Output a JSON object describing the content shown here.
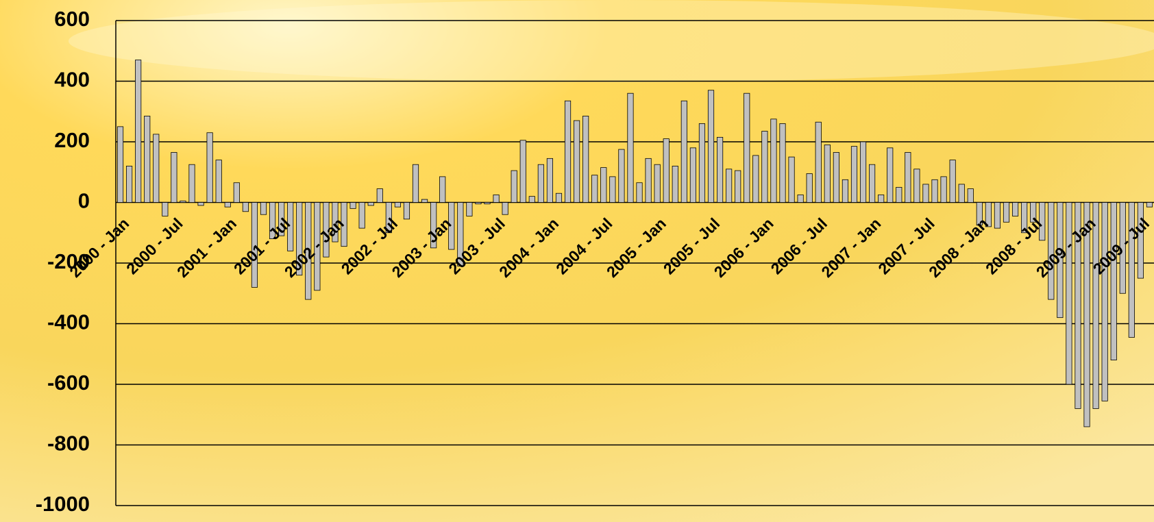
{
  "chart_data": {
    "type": "bar",
    "categories": [
      "2000 - Jan",
      null,
      null,
      null,
      null,
      null,
      "2000 - Jul",
      null,
      null,
      null,
      null,
      null,
      "2001 - Jan",
      null,
      null,
      null,
      null,
      null,
      "2001 - Jul",
      null,
      null,
      null,
      null,
      null,
      "2002 - Jan",
      null,
      null,
      null,
      null,
      null,
      "2002 - Jul",
      null,
      null,
      null,
      null,
      null,
      "2003 - Jan",
      null,
      null,
      null,
      null,
      null,
      "2003 - Jul",
      null,
      null,
      null,
      null,
      null,
      "2004 - Jan",
      null,
      null,
      null,
      null,
      null,
      "2004 - Jul",
      null,
      null,
      null,
      null,
      null,
      "2005 - Jan",
      null,
      null,
      null,
      null,
      null,
      "2005 - Jul",
      null,
      null,
      null,
      null,
      null,
      "2006 - Jan",
      null,
      null,
      null,
      null,
      null,
      "2006 - Jul",
      null,
      null,
      null,
      null,
      null,
      "2007 - Jan",
      null,
      null,
      null,
      null,
      null,
      "2007 - Jul",
      null,
      null,
      null,
      null,
      null,
      "2008 - Jan",
      null,
      null,
      null,
      null,
      null,
      "2008 - Jul",
      null,
      null,
      null,
      null,
      null,
      "2009 - Jan",
      null,
      null,
      null,
      null,
      null,
      "2009 - Jul",
      null
    ],
    "values": [
      250,
      120,
      470,
      285,
      225,
      -45,
      165,
      5,
      125,
      -10,
      230,
      140,
      -15,
      65,
      -30,
      -280,
      -40,
      -120,
      -110,
      -160,
      -240,
      -320,
      -290,
      -180,
      -130,
      -145,
      -20,
      -85,
      -10,
      45,
      -100,
      -15,
      -55,
      125,
      10,
      -150,
      85,
      -155,
      -210,
      -45,
      -5,
      -5,
      25,
      -40,
      105,
      205,
      20,
      125,
      145,
      30,
      335,
      270,
      285,
      90,
      115,
      85,
      175,
      360,
      65,
      145,
      125,
      210,
      120,
      335,
      180,
      260,
      370,
      215,
      110,
      105,
      360,
      155,
      235,
      275,
      260,
      150,
      25,
      95,
      265,
      190,
      165,
      75,
      185,
      200,
      125,
      25,
      180,
      50,
      165,
      110,
      60,
      75,
      85,
      140,
      60,
      45,
      -75,
      -80,
      -85,
      -65,
      -45,
      -100,
      -65,
      -125,
      -320,
      -380,
      -600,
      -680,
      -740,
      -680,
      -655,
      -520,
      -300,
      -445,
      -250,
      -15
    ],
    "color": "#c0c0c0",
    "ylim": [
      -1000,
      600
    ],
    "yticks": [
      -1000,
      -800,
      -600,
      -400,
      -200,
      0,
      200,
      400,
      600
    ],
    "grid": true
  }
}
